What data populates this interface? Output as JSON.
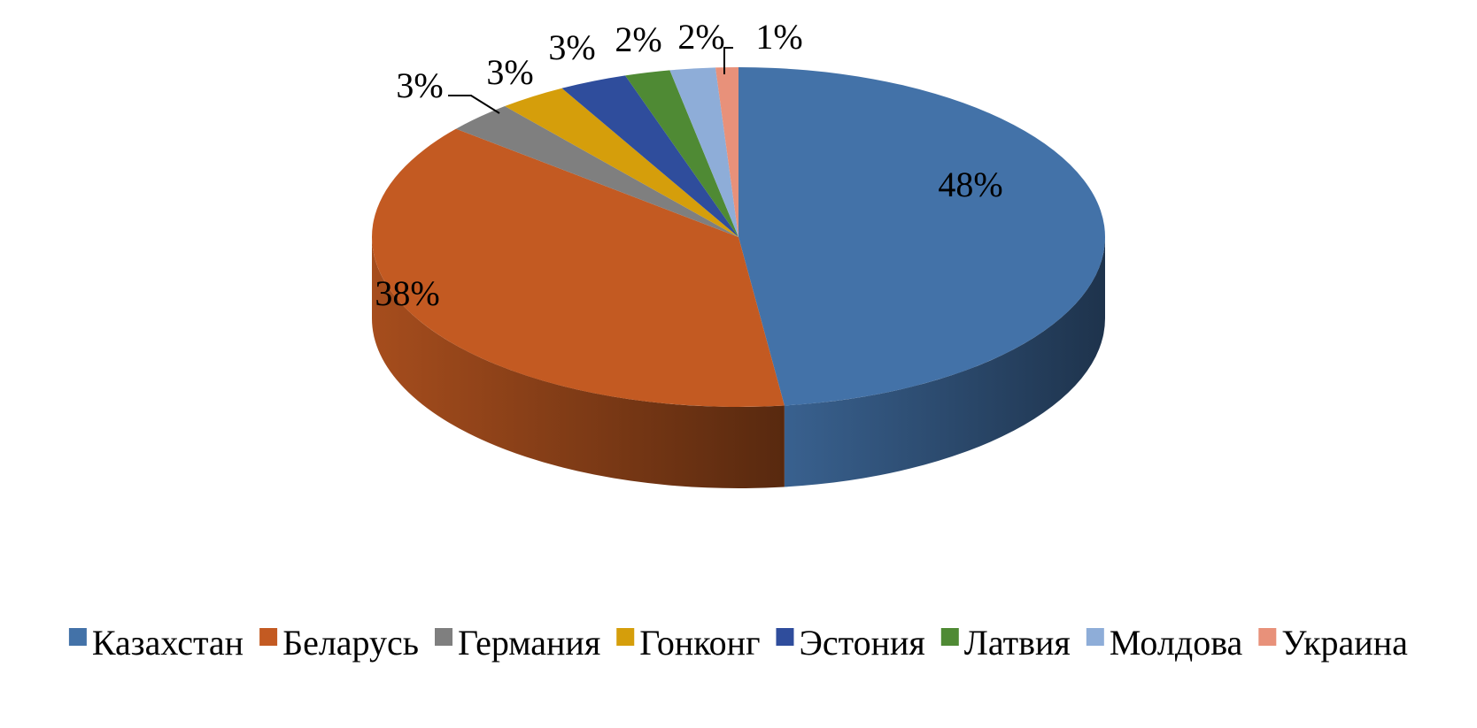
{
  "chart_data": {
    "type": "pie",
    "title": "",
    "categories": [
      "Казахстан",
      "Беларусь",
      "Германия",
      "Гонконг",
      "Эстония",
      "Латвия",
      "Молдова",
      "Украина"
    ],
    "values": [
      48,
      38,
      3,
      3,
      3,
      2,
      2,
      1
    ],
    "data_labels": [
      "48%",
      "38%",
      "3%",
      "3%",
      "3%",
      "2%",
      "2%",
      "1%"
    ],
    "colors": [
      "#4372A8",
      "#C35A22",
      "#7F7F7F",
      "#D59E0B",
      "#2F4D9C",
      "#4F8A34",
      "#8EADD8",
      "#E8917A"
    ],
    "legend_position": "bottom",
    "style": "3d"
  }
}
